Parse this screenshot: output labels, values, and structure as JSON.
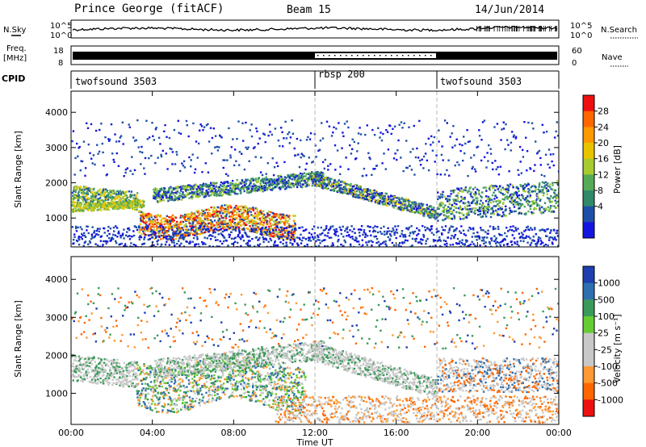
{
  "header": {
    "radar": "Prince George (fitACF)",
    "beam": "Beam 15",
    "date": "14/Jun/2014"
  },
  "noise_panel": {
    "left_label": "N.Sky",
    "right_label": "N.Search",
    "left_ticks": [
      "10^5",
      "10^0"
    ],
    "right_ticks": [
      "10^5",
      "10^0"
    ]
  },
  "freq_panel": {
    "left_label_1": "Freq.",
    "left_label_2": "[MHz]",
    "right_label": "Nave",
    "left_ticks": [
      "18",
      "8"
    ],
    "right_ticks": [
      "60",
      "0"
    ]
  },
  "cpid_panel": {
    "label": "CPID",
    "segments": [
      {
        "name": "twofsound 3503",
        "start_hour": 0
      },
      {
        "name": "rbsp 200",
        "start_hour": 12
      },
      {
        "name": "twofsound 3503",
        "start_hour": 18
      }
    ]
  },
  "x_axis": {
    "label": "Time UT",
    "range_hours": [
      0,
      24
    ],
    "ticks": [
      "00:00",
      "04:00",
      "08:00",
      "12:00",
      "16:00",
      "20:00",
      "00:00"
    ]
  },
  "chart_data": [
    {
      "type": "heatmap",
      "title": "Power",
      "ylabel": "Slant Range [km]",
      "ylim": [
        180,
        4600
      ],
      "yticks": [
        1000,
        2000,
        3000,
        4000
      ],
      "colorbar": {
        "label": "Power [dB]",
        "ticks": [
          "28",
          "24",
          "20",
          "16",
          "12",
          "8",
          "4"
        ],
        "colors": [
          "#ee1010",
          "#ff6600",
          "#ff9900",
          "#e8c400",
          "#a8cc30",
          "#55aa55",
          "#2f8a6a",
          "#1e4fa8",
          "#1414e0"
        ]
      }
    },
    {
      "type": "heatmap",
      "title": "Velocity",
      "ylabel": "Slant Range [km]",
      "ylim": [
        180,
        4600
      ],
      "yticks": [
        1000,
        2000,
        3000,
        4000
      ],
      "colorbar": {
        "label": "Velocity [m s⁻¹]",
        "ticks": [
          "1000",
          "500",
          "100",
          "25",
          "-25",
          "-100",
          "-500",
          "-1000"
        ],
        "colors": [
          "#1e3fb0",
          "#2f6fb0",
          "#3a9a5a",
          "#66cc33",
          "#c8c8c8",
          "#c8c8c8",
          "#ff9933",
          "#ff6600",
          "#ee1010"
        ]
      }
    }
  ]
}
